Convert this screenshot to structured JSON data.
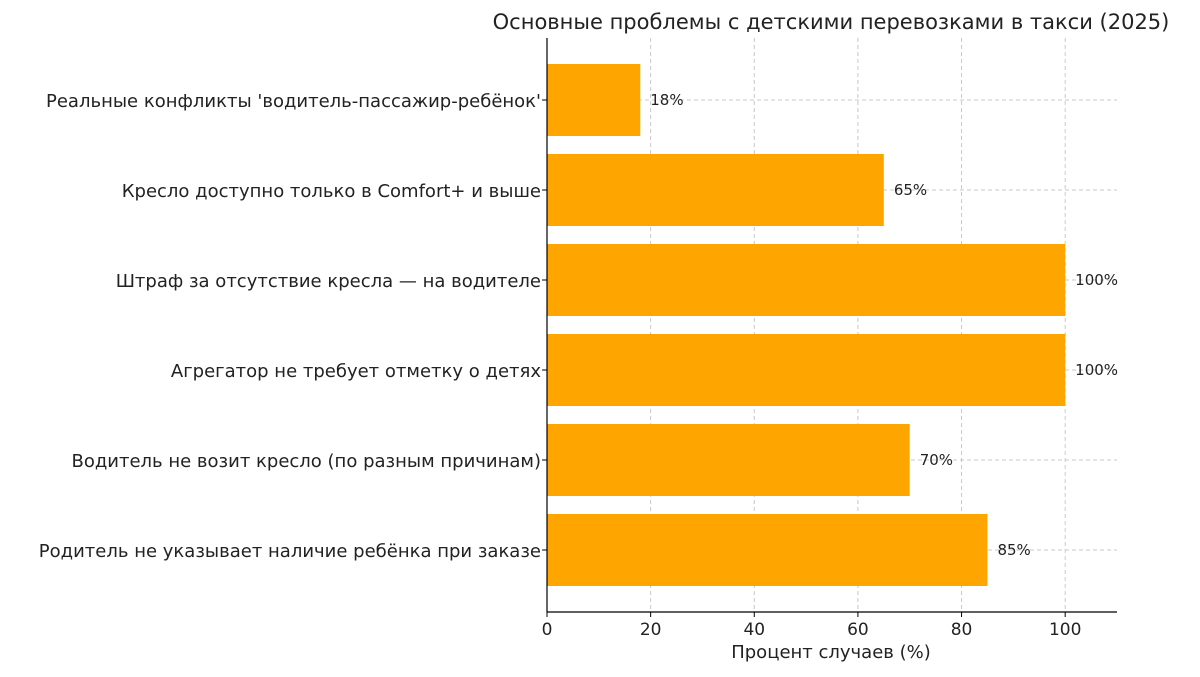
{
  "chart_data": {
    "type": "bar",
    "orientation": "horizontal",
    "title": "Основные проблемы с детскими перевозками в такси (2025)",
    "xlabel": "Процент случаев (%)",
    "ylabel": "",
    "xlim": [
      0,
      110
    ],
    "xticks": [
      0,
      20,
      40,
      60,
      80,
      100
    ],
    "grid": true,
    "bar_color": "#FFA500",
    "categories": [
      "Реальные конфликты 'водитель-пассажир-ребёнок'",
      "Кресло доступно только в Comfort+ и выше",
      "Штраф за отсутствие кресла — на водителе",
      "Агрегатор не требует отметку о детях",
      "Водитель не возит кресло (по разным причинам)",
      "Родитель не указывает наличие ребёнка при заказе"
    ],
    "values": [
      18,
      65,
      100,
      100,
      70,
      85
    ],
    "data_labels": [
      "18%",
      "65%",
      "100%",
      "100%",
      "70%",
      "85%"
    ]
  }
}
